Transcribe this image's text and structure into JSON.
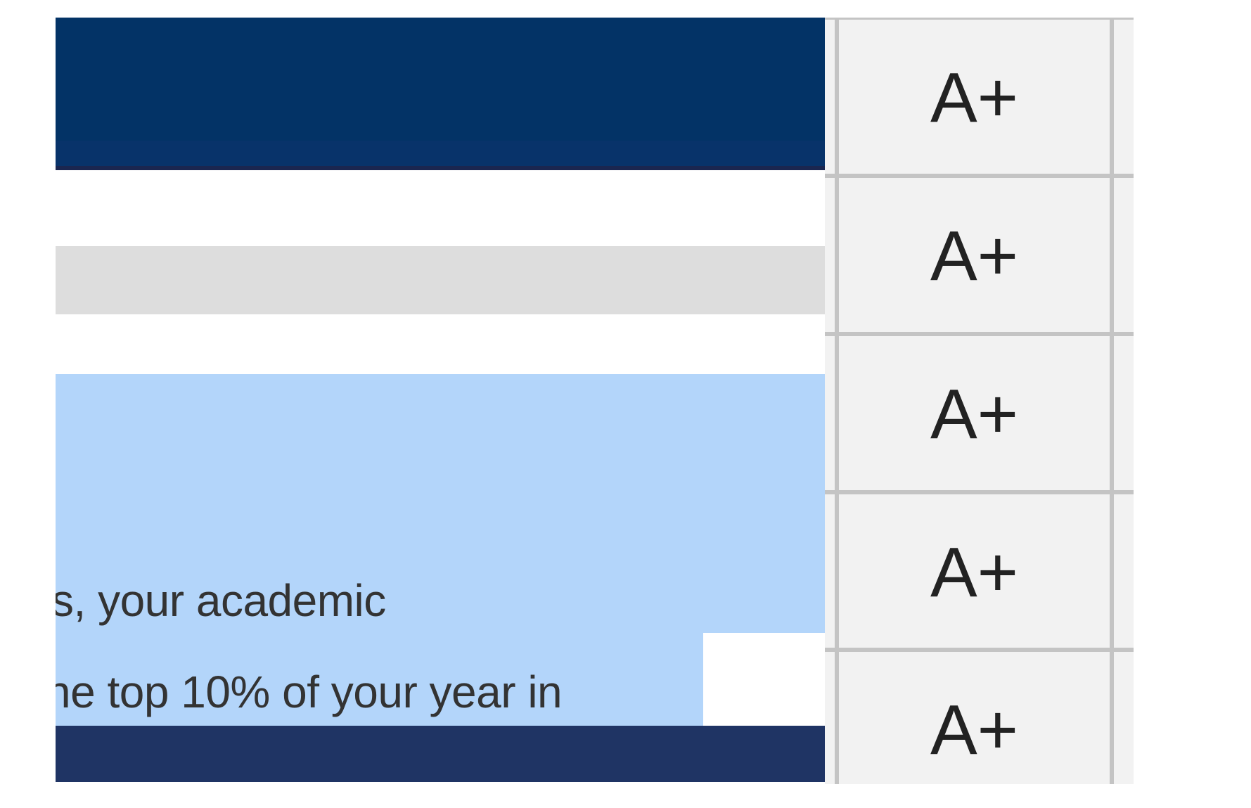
{
  "colors": {
    "header": "#033366",
    "highlight": "#b3d5fa",
    "footer": "#1f3464",
    "grid_bg": "#f2f2f2"
  },
  "content": {
    "text_lines": [
      "s, your academic",
      "ne top 10% of your year in"
    ]
  },
  "grades": [
    "A+",
    "A+",
    "A+",
    "A+",
    "A+"
  ]
}
